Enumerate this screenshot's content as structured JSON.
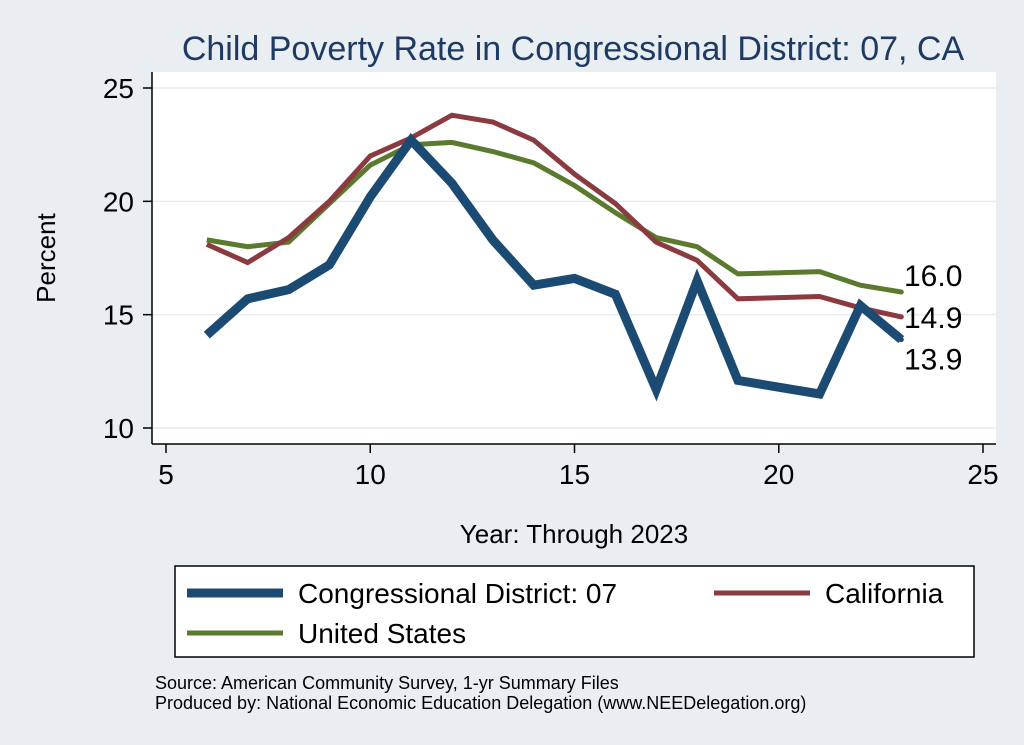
{
  "colors": {
    "background": "#e9eef3",
    "plot_background": "#ffffff",
    "title": "#1f3b63",
    "grid": "#e6ecf1",
    "congressional_district": "#1b4a73",
    "california": "#8b3a40",
    "united_states": "#5a7a2e"
  },
  "chart_data": {
    "type": "line",
    "title": "Child Poverty Rate in Congressional District:  07, CA",
    "xlabel": "Year: Through 2023",
    "ylabel": "Percent",
    "xlim": [
      5,
      25
    ],
    "ylim": [
      10,
      25
    ],
    "x_ticks": [
      5,
      10,
      15,
      20,
      25
    ],
    "y_ticks": [
      10,
      15,
      20,
      25
    ],
    "grid": true,
    "legend_position": "bottom",
    "series": [
      {
        "name": "Congressional District:  07",
        "color_key": "congressional_district",
        "x": [
          6,
          7,
          8,
          9,
          10,
          11,
          12,
          13,
          14,
          15,
          16,
          17,
          18,
          19,
          21,
          22,
          23
        ],
        "values": [
          14.1,
          15.7,
          16.1,
          17.2,
          20.2,
          22.7,
          20.8,
          18.3,
          16.3,
          16.6,
          15.9,
          11.7,
          16.5,
          12.1,
          11.5,
          15.4,
          13.9
        ]
      },
      {
        "name": "California",
        "color_key": "california",
        "x": [
          6,
          7,
          8,
          9,
          10,
          11,
          12,
          13,
          14,
          15,
          16,
          17,
          18,
          19,
          21,
          22,
          23
        ],
        "values": [
          18.1,
          17.3,
          18.4,
          20.0,
          22.0,
          22.8,
          23.8,
          23.5,
          22.7,
          21.2,
          19.9,
          18.2,
          17.4,
          15.7,
          15.8,
          15.3,
          14.9
        ]
      },
      {
        "name": "United States",
        "color_key": "united_states",
        "x": [
          6,
          7,
          8,
          9,
          10,
          11,
          12,
          13,
          14,
          15,
          16,
          17,
          18,
          19,
          21,
          22,
          23
        ],
        "values": [
          18.3,
          18.0,
          18.2,
          19.9,
          21.6,
          22.5,
          22.6,
          22.2,
          21.7,
          20.7,
          19.5,
          18.4,
          18.0,
          16.8,
          16.9,
          16.3,
          16.0
        ]
      }
    ],
    "end_labels": [
      {
        "text": "16.0",
        "value": 16.0,
        "series": "United States"
      },
      {
        "text": "14.9",
        "value": 14.9,
        "series": "California"
      },
      {
        "text": "13.9",
        "value": 13.9,
        "series": "Congressional District:  07"
      }
    ]
  },
  "legend": {
    "items": [
      {
        "label": "Congressional District:  07",
        "color_key": "congressional_district"
      },
      {
        "label": "California",
        "color_key": "california"
      },
      {
        "label": "United States",
        "color_key": "united_states"
      }
    ]
  },
  "footer": {
    "source": "Source: American Community Survey, 1-yr Summary Files",
    "produced_by": "Produced by: National Economic Education Delegation (www.NEEDelegation.org)"
  }
}
